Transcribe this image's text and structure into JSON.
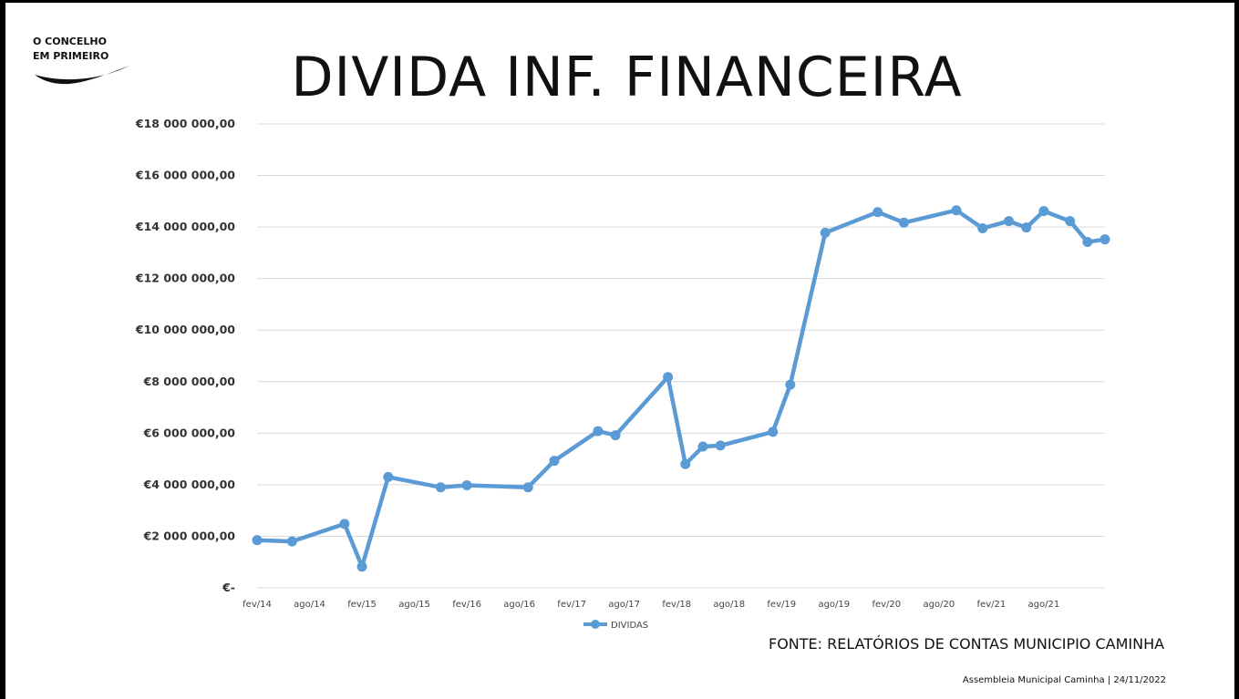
{
  "brand": {
    "line1": "O CONCELHO",
    "line2": "EM PRIMEIRO"
  },
  "slide": {
    "title": "DIVIDA INF. FINANCEIRA",
    "source": "FONTE: RELATÓRIOS DE CONTAS MUNICIPIO CAMINHA",
    "footer": "Assembleia Municipal Caminha | 24/11/2022"
  },
  "colors": {
    "series": "#5b9bd5",
    "grid": "#d9d9d9"
  },
  "chart_data": {
    "type": "line",
    "title": "",
    "xlabel": "",
    "ylabel": "",
    "ylim": [
      0,
      18000000
    ],
    "yticks": [
      0,
      2000000,
      4000000,
      6000000,
      8000000,
      10000000,
      12000000,
      14000000,
      16000000,
      18000000
    ],
    "ytick_labels": [
      "€-",
      "€2 000 000,00",
      "€4 000 000,00",
      "€6 000 000,00",
      "€8 000 000,00",
      "€10 000 000,00",
      "€12 000 000,00",
      "€14 000 000,00",
      "€16 000 000,00",
      "€18 000 000,00"
    ],
    "xlim": [
      "2014-02",
      "2022-03"
    ],
    "xtick_labels": [
      "fev/14",
      "ago/14",
      "fev/15",
      "ago/15",
      "fev/16",
      "ago/16",
      "fev/17",
      "ago/17",
      "fev/18",
      "ago/18",
      "fev/19",
      "ago/19",
      "fev/20",
      "ago/20",
      "fev/21",
      "ago/21"
    ],
    "grid": true,
    "legend": "bottom",
    "series": [
      {
        "name": "DIVIDAS",
        "x": [
          "2014-02",
          "2014-06",
          "2014-12",
          "2015-02",
          "2015-05",
          "2015-11",
          "2016-02",
          "2016-09",
          "2016-12",
          "2017-05",
          "2017-07",
          "2018-01",
          "2018-03",
          "2018-05",
          "2018-07",
          "2019-01",
          "2019-03",
          "2019-07",
          "2020-01",
          "2020-04",
          "2020-10",
          "2021-01",
          "2021-04",
          "2021-06",
          "2021-08",
          "2021-11",
          "2022-01",
          "2022-03"
        ],
        "values": [
          1850000,
          1800000,
          2480000,
          820000,
          4300000,
          3900000,
          3980000,
          3900000,
          4930000,
          6080000,
          5920000,
          8180000,
          4800000,
          5480000,
          5520000,
          6050000,
          7880000,
          13780000,
          14580000,
          14170000,
          14650000,
          13950000,
          14230000,
          13980000,
          14620000,
          14230000,
          13420000,
          13520000
        ]
      }
    ]
  }
}
